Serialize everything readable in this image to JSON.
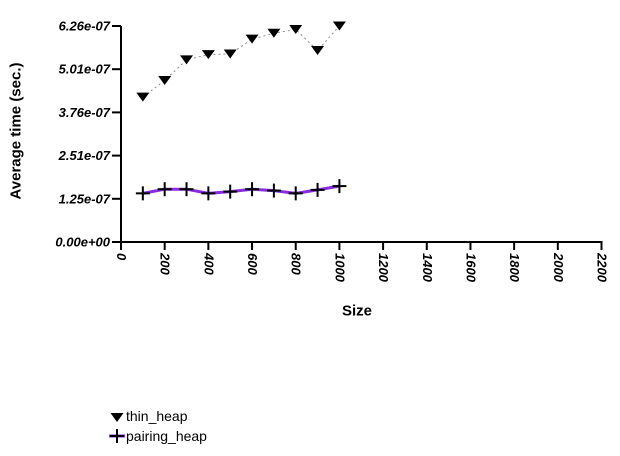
{
  "chart_data": {
    "type": "line",
    "title": "",
    "xlabel": "Size",
    "ylabel": "Average time (sec.)",
    "xlim": [
      0,
      2200
    ],
    "ylim": [
      0,
      6.26e-07
    ],
    "grid": false,
    "legend_position": "bottom-left",
    "x_tick_labels": [
      "0",
      "200",
      "400",
      "600",
      "800",
      "1000",
      "1200",
      "1400",
      "1600",
      "1800",
      "2000",
      "2200"
    ],
    "y_tick_labels": [
      "0.00e+00",
      "1.25e-07",
      "2.51e-07",
      "3.76e-07",
      "5.01e-07",
      "6.26e-07"
    ],
    "x": [
      100,
      200,
      300,
      400,
      500,
      600,
      700,
      800,
      900,
      1000
    ],
    "series": [
      {
        "name": "thin_heap",
        "marker": "triangle-down",
        "marker_color": "#000000",
        "line_style": "dotted",
        "line_color": "#8c8c8c",
        "values": [
          4.2e-07,
          4.68e-07,
          5.28e-07,
          5.43e-07,
          5.45e-07,
          5.88e-07,
          6.05e-07,
          6.16e-07,
          5.55e-07,
          6.26e-07
        ]
      },
      {
        "name": "pairing_heap",
        "marker": "plus",
        "marker_color": "#000000",
        "line_style": "solid",
        "line_color": "#8a2be2",
        "values": [
          1.41e-07,
          1.53e-07,
          1.53e-07,
          1.41e-07,
          1.46e-07,
          1.53e-07,
          1.49e-07,
          1.41e-07,
          1.51e-07,
          1.62e-07
        ]
      }
    ],
    "axis_color": "#000000"
  }
}
